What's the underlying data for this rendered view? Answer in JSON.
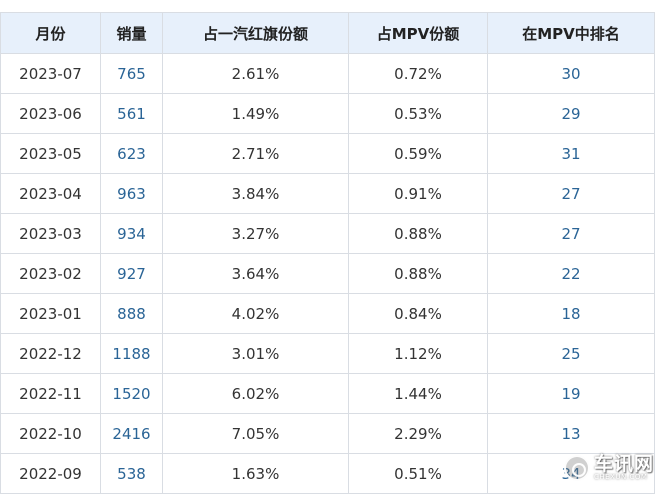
{
  "table": {
    "headers": [
      "月份",
      "销量",
      "占一汽红旗份额",
      "占MPV份额",
      "在MPV中排名"
    ],
    "rows": [
      {
        "month": "2023-07",
        "sales": "765",
        "share_brand": "2.61%",
        "share_mpv": "0.72%",
        "rank": "30"
      },
      {
        "month": "2023-06",
        "sales": "561",
        "share_brand": "1.49%",
        "share_mpv": "0.53%",
        "rank": "29"
      },
      {
        "month": "2023-05",
        "sales": "623",
        "share_brand": "2.71%",
        "share_mpv": "0.59%",
        "rank": "31"
      },
      {
        "month": "2023-04",
        "sales": "963",
        "share_brand": "3.84%",
        "share_mpv": "0.91%",
        "rank": "27"
      },
      {
        "month": "2023-03",
        "sales": "934",
        "share_brand": "3.27%",
        "share_mpv": "0.88%",
        "rank": "27"
      },
      {
        "month": "2023-02",
        "sales": "927",
        "share_brand": "3.64%",
        "share_mpv": "0.88%",
        "rank": "22"
      },
      {
        "month": "2023-01",
        "sales": "888",
        "share_brand": "4.02%",
        "share_mpv": "0.84%",
        "rank": "18"
      },
      {
        "month": "2022-12",
        "sales": "1188",
        "share_brand": "3.01%",
        "share_mpv": "1.12%",
        "rank": "25"
      },
      {
        "month": "2022-11",
        "sales": "1520",
        "share_brand": "6.02%",
        "share_mpv": "1.44%",
        "rank": "19"
      },
      {
        "month": "2022-10",
        "sales": "2416",
        "share_brand": "7.05%",
        "share_mpv": "2.29%",
        "rank": "13"
      },
      {
        "month": "2022-09",
        "sales": "538",
        "share_brand": "1.63%",
        "share_mpv": "0.51%",
        "rank": "34"
      }
    ]
  },
  "watermark": {
    "text_cn": "车讯网",
    "text_en": "CHEXUN.COM",
    "icon": "chexun-logo-icon"
  },
  "colors": {
    "header_bg": "#e7f0fb",
    "border": "#d9dde3",
    "link": "#2a6496",
    "text": "#333333"
  }
}
